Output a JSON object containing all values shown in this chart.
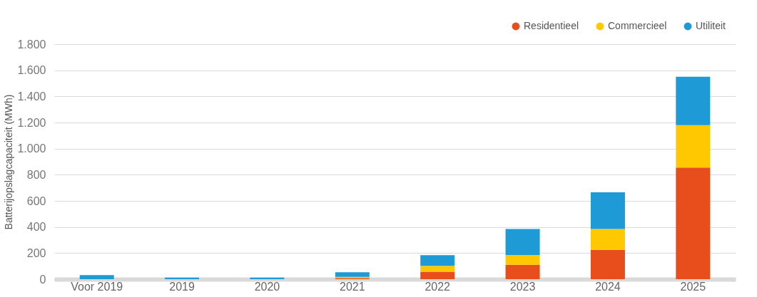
{
  "chart_data": {
    "type": "bar",
    "stacked": true,
    "ylabel": "Batterijopslagcapaciteit (MWh)",
    "categories": [
      "Voor 2019",
      "2019",
      "2020",
      "2021",
      "2022",
      "2023",
      "2024",
      "2025"
    ],
    "series": [
      {
        "name": "Residentieel",
        "color": "#e84e1b",
        "values": [
          0,
          0,
          0,
          8,
          57,
          110,
          225,
          855
        ]
      },
      {
        "name": "Commercieel",
        "color": "#ffc800",
        "values": [
          0,
          0,
          0,
          10,
          45,
          75,
          160,
          325
        ]
      },
      {
        "name": "Utiliteit",
        "color": "#1e9bd7",
        "values": [
          32,
          12,
          12,
          35,
          82,
          200,
          280,
          370
        ]
      }
    ],
    "ylim": [
      0,
      1800
    ],
    "yticks": [
      0,
      200,
      400,
      600,
      800,
      {
        "value": 1000,
        "label": "1.000"
      },
      {
        "value": 1200,
        "label": "1.200"
      },
      {
        "value": 1400,
        "label": "1.400"
      },
      {
        "value": 1600,
        "label": "1.600"
      },
      {
        "value": 1800,
        "label": "1.800"
      }
    ],
    "grid": "y",
    "legend": "top right"
  }
}
